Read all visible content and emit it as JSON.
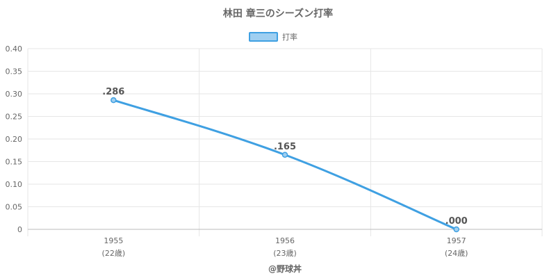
{
  "chart_data": {
    "type": "line",
    "title": "林田 章三のシーズン打率",
    "legend": {
      "position": "top",
      "label": "打率"
    },
    "categories": [
      "1955",
      "1956",
      "1957"
    ],
    "category_sublabels": [
      "(22歳)",
      "(23歳)",
      "(24歳)"
    ],
    "series": [
      {
        "name": "打率",
        "values": [
          0.286,
          0.165,
          0.0
        ],
        "labels": [
          ".286",
          ".165",
          ".000"
        ]
      }
    ],
    "ylim": [
      0,
      0.4
    ],
    "yticks": [
      "0",
      "0.05",
      "0.10",
      "0.15",
      "0.20",
      "0.25",
      "0.30",
      "0.35",
      "0.40"
    ],
    "grid": true,
    "colors": {
      "line": "#3fa0e2",
      "fill": "#9fcff1",
      "grid": "#e6e6e6",
      "axis": "#bbbbbb"
    }
  },
  "footer": "@野球丼"
}
